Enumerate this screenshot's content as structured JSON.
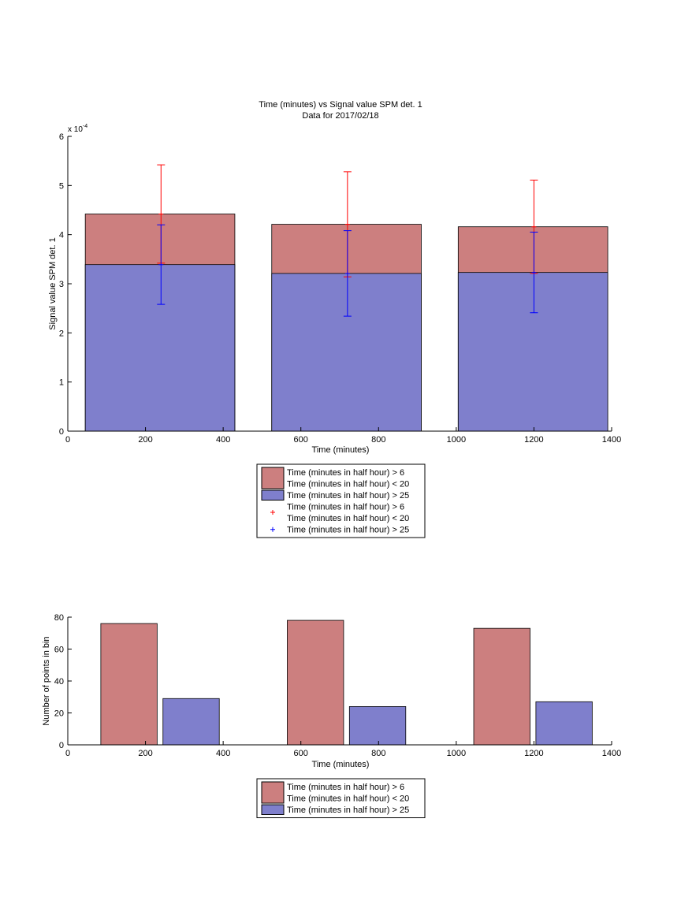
{
  "chart_data": [
    {
      "type": "bar",
      "title": "Time (minutes) vs Signal value SPM det. 1",
      "subtitle": "Data for 2017/02/18",
      "xlabel": "Time (minutes)",
      "ylabel": "Signal value SPM det. 1",
      "y_exponent_label": "x 10",
      "y_exponent_power": "-4",
      "xlim": [
        0,
        1400
      ],
      "ylim": [
        0,
        6
      ],
      "xticks": [
        "0",
        "200",
        "400",
        "600",
        "800",
        "1000",
        "1200",
        "1400"
      ],
      "yticks": [
        "0",
        "1",
        "2",
        "3",
        "4",
        "5",
        "6"
      ],
      "bins": [
        {
          "x_start": 45,
          "x_end": 430,
          "center": 240
        },
        {
          "x_start": 525,
          "x_end": 910,
          "center": 720
        },
        {
          "x_start": 1005,
          "x_end": 1390,
          "center": 1200
        }
      ],
      "series": [
        {
          "name": "Time (minutes in half hour) > 6 Time (minutes in half hour) < 20",
          "color": "#cc7f7f",
          "values": [
            4.42,
            4.21,
            4.16
          ],
          "errors": [
            1.0,
            1.07,
            0.95
          ],
          "error_color": "#ff0000"
        },
        {
          "name": "Time (minutes in half hour) > 25",
          "color": "#7f7fcc",
          "values": [
            3.39,
            3.21,
            3.23
          ],
          "errors": [
            0.81,
            0.87,
            0.82
          ],
          "error_color": "#0000ff"
        }
      ],
      "legend": {
        "placement": "below",
        "entries": [
          {
            "kind": "patch",
            "color": "#cc7f7f",
            "lines": [
              "Time (minutes in half hour) > 6",
              "Time (minutes in half hour) < 20"
            ]
          },
          {
            "kind": "patch",
            "color": "#7f7fcc",
            "lines": [
              "Time (minutes in half hour) > 25"
            ]
          },
          {
            "kind": "marker",
            "color": "#ff0000",
            "lines": [
              "Time (minutes in half hour) > 6",
              "Time (minutes in half hour) < 20"
            ]
          },
          {
            "kind": "marker",
            "color": "#0000ff",
            "lines": [
              "Time (minutes in half hour) > 25"
            ]
          }
        ]
      }
    },
    {
      "type": "bar",
      "xlabel": "Time (minutes)",
      "ylabel": "Number of points in bin",
      "xlim": [
        0,
        1400
      ],
      "ylim": [
        0,
        80
      ],
      "xticks": [
        "0",
        "200",
        "400",
        "600",
        "800",
        "1000",
        "1200",
        "1400"
      ],
      "yticks": [
        "0",
        "20",
        "40",
        "60",
        "80"
      ],
      "series": [
        {
          "name": "Time (minutes in half hour) > 6 Time (minutes in half hour) < 20",
          "color": "#cc7f7f",
          "bars": [
            {
              "x_start": 85,
              "x_end": 230,
              "value": 76
            },
            {
              "x_start": 565,
              "x_end": 710,
              "value": 78
            },
            {
              "x_start": 1045,
              "x_end": 1190,
              "value": 73
            }
          ]
        },
        {
          "name": "Time (minutes in half hour) > 25",
          "color": "#7f7fcc",
          "bars": [
            {
              "x_start": 245,
              "x_end": 390,
              "value": 29
            },
            {
              "x_start": 725,
              "x_end": 870,
              "value": 24
            },
            {
              "x_start": 1205,
              "x_end": 1350,
              "value": 27
            }
          ]
        }
      ],
      "legend": {
        "placement": "below",
        "entries": [
          {
            "kind": "patch",
            "color": "#cc7f7f",
            "lines": [
              "Time (minutes in half hour) > 6",
              "Time (minutes in half hour) < 20"
            ]
          },
          {
            "kind": "patch",
            "color": "#7f7fcc",
            "lines": [
              "Time (minutes in half hour) > 25"
            ]
          }
        ]
      }
    }
  ]
}
